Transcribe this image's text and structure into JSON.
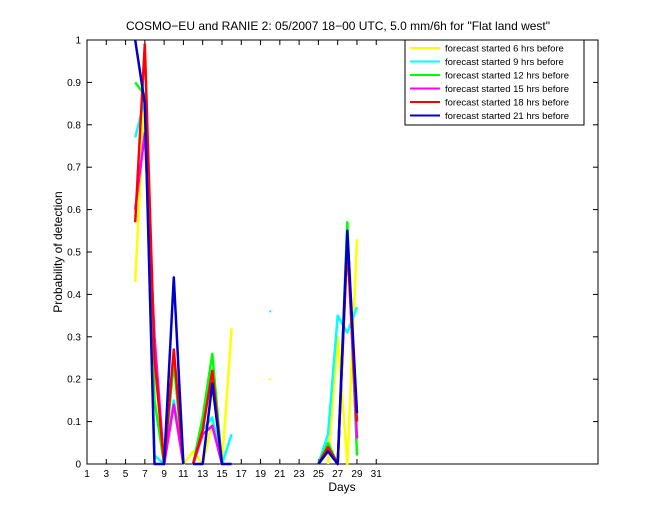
{
  "chart_data": {
    "type": "line",
    "title": "COSMO−EU and RANIE 2: 05/2007 18−00 UTC, 5.0 mm/6h for \"Flat land west\"",
    "xlabel": "Days",
    "ylabel": "Probability of detection",
    "xlim": [
      1,
      54
    ],
    "ylim": [
      0,
      1
    ],
    "xticks": [
      1,
      3,
      5,
      7,
      9,
      11,
      13,
      15,
      17,
      19,
      21,
      23,
      25,
      27,
      29,
      31
    ],
    "yticks": [
      0,
      0.1,
      0.2,
      0.3,
      0.4,
      0.5,
      0.6,
      0.7,
      0.8,
      0.9,
      1
    ],
    "ytick_labels": [
      "0",
      "0.1",
      "0.2",
      "0.3",
      "0.4",
      "0.5",
      "0.6",
      "0.7",
      "0.8",
      "0.9",
      "1"
    ],
    "legend_position": "top-right",
    "series": [
      {
        "name": "forecast started 6 hrs before",
        "color": "#ffff00",
        "segments": [
          [
            [
              6,
              0.43
            ],
            [
              7,
              0.87
            ],
            [
              8,
              0.2
            ]
          ],
          [
            [
              11,
              0.0
            ],
            [
              12,
              0.03
            ],
            [
              13,
              0.0
            ],
            [
              14,
              0.1
            ],
            [
              15,
              0.0
            ],
            [
              16,
              0.32
            ]
          ],
          [
            [
              20,
              0.2
            ]
          ],
          [
            [
              26,
              0.0
            ],
            [
              27,
              0.3
            ],
            [
              28,
              0.0
            ],
            [
              29,
              0.53
            ]
          ]
        ]
      },
      {
        "name": "forecast started 9 hrs before",
        "color": "#00ffff",
        "segments": [
          [
            [
              6,
              0.77
            ],
            [
              7,
              0.86
            ],
            [
              8,
              0.02
            ],
            [
              9,
              0.0
            ],
            [
              10,
              0.15
            ],
            [
              11,
              0.0
            ]
          ],
          [
            [
              12,
              0.0
            ],
            [
              13,
              0.08
            ],
            [
              14,
              0.11
            ],
            [
              15,
              0.0
            ],
            [
              16,
              0.07
            ]
          ],
          [
            [
              20,
              0.36
            ]
          ],
          [
            [
              25,
              0.0
            ],
            [
              26,
              0.07
            ],
            [
              27,
              0.35
            ],
            [
              28,
              0.31
            ],
            [
              29,
              0.37
            ]
          ]
        ]
      },
      {
        "name": "forecast started 12 hrs before",
        "color": "#00ff00",
        "segments": [
          [
            [
              6,
              0.9
            ],
            [
              7,
              0.87
            ],
            [
              8,
              0.15
            ],
            [
              9,
              0.0
            ],
            [
              10,
              0.24
            ],
            [
              11,
              0.0
            ]
          ],
          [
            [
              12,
              0.0
            ],
            [
              13,
              0.11
            ],
            [
              14,
              0.26
            ],
            [
              15,
              0.0
            ]
          ],
          [
            [
              25,
              0.0
            ],
            [
              26,
              0.05
            ],
            [
              27,
              0.0
            ],
            [
              28,
              0.57
            ],
            [
              29,
              0.02
            ]
          ]
        ]
      },
      {
        "name": "forecast started 15 hrs before",
        "color": "#ff00ff",
        "segments": [
          [
            [
              6,
              0.6
            ],
            [
              7,
              0.78
            ],
            [
              8,
              0.3
            ],
            [
              9,
              0.0
            ],
            [
              10,
              0.14
            ],
            [
              11,
              0.0
            ]
          ],
          [
            [
              12,
              0.0
            ],
            [
              13,
              0.07
            ],
            [
              14,
              0.09
            ],
            [
              15,
              0.0
            ]
          ],
          [
            [
              25,
              0.0
            ],
            [
              26,
              0.03
            ],
            [
              27,
              0.0
            ],
            [
              28,
              0.53
            ],
            [
              29,
              0.06
            ]
          ]
        ]
      },
      {
        "name": "forecast started 18 hrs before",
        "color": "#ff0000",
        "segments": [
          [
            [
              6,
              0.57
            ],
            [
              7,
              0.99
            ],
            [
              8,
              0.25
            ],
            [
              9,
              0.0
            ],
            [
              10,
              0.27
            ],
            [
              11,
              0.0
            ]
          ],
          [
            [
              12,
              0.0
            ],
            [
              13,
              0.08
            ],
            [
              14,
              0.22
            ],
            [
              15,
              0.0
            ]
          ],
          [
            [
              25,
              0.0
            ],
            [
              26,
              0.04
            ],
            [
              27,
              0.0
            ],
            [
              28,
              0.52
            ],
            [
              29,
              0.1
            ]
          ]
        ]
      },
      {
        "name": "forecast started 21 hrs before",
        "color": "#0000cc",
        "segments": [
          [
            [
              6,
              1.0
            ],
            [
              7,
              0.85
            ],
            [
              8,
              0.0
            ],
            [
              9,
              0.0
            ],
            [
              10,
              0.44
            ],
            [
              11,
              0.0
            ]
          ],
          [
            [
              12,
              0.0
            ],
            [
              13,
              0.0
            ],
            [
              14,
              0.19
            ],
            [
              15,
              0.0
            ],
            [
              16,
              0.0
            ]
          ],
          [
            [
              25,
              0.0
            ],
            [
              26,
              0.03
            ],
            [
              27,
              0.0
            ],
            [
              28,
              0.55
            ],
            [
              29,
              0.12
            ]
          ]
        ]
      }
    ]
  }
}
